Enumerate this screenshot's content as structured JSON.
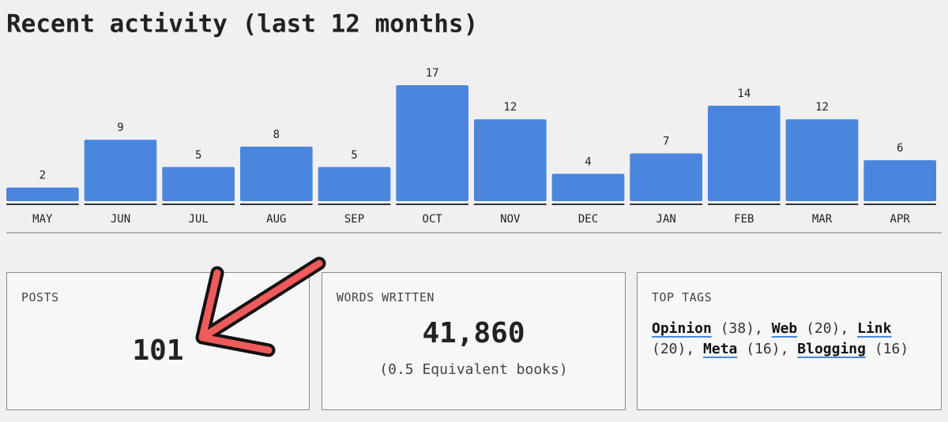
{
  "chart_data": {
    "type": "bar",
    "title": "Recent activity (last 12 months)",
    "categories": [
      "MAY",
      "JUN",
      "JUL",
      "AUG",
      "SEP",
      "OCT",
      "NOV",
      "DEC",
      "JAN",
      "FEB",
      "MAR",
      "APR"
    ],
    "values": [
      2,
      9,
      5,
      8,
      5,
      17,
      12,
      4,
      7,
      14,
      12,
      6
    ],
    "color": "#4a86dd"
  },
  "cards": {
    "posts": {
      "label": "POSTS",
      "value": 101
    },
    "words": {
      "label": "WORDS WRITTEN",
      "value": "41,860",
      "note": "(0.5 Equivalent books)"
    },
    "tags": {
      "label": "TOP TAGS",
      "items": [
        {
          "name": "Opinion",
          "count": "(38),"
        },
        {
          "name": "Web",
          "count": "(20),"
        },
        {
          "name": "Link",
          "count": "(20),"
        },
        {
          "name": "Meta",
          "count": "(16),"
        },
        {
          "name": "Blogging",
          "count": "(16)"
        }
      ]
    }
  }
}
